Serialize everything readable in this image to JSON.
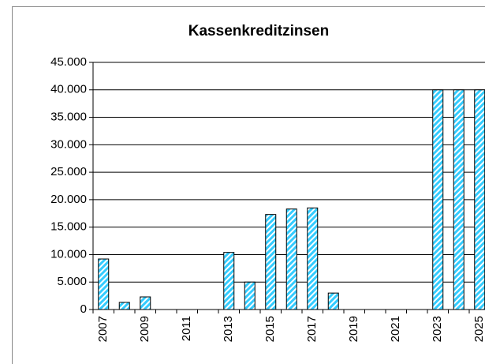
{
  "chart_data": {
    "type": "bar",
    "title": "Kassenkreditzinsen",
    "categories": [
      "2007",
      null,
      "2009",
      null,
      "2011",
      null,
      "2013",
      null,
      "2015",
      null,
      "2017",
      null,
      "2019",
      null,
      "2021",
      null,
      "2023",
      null,
      "2025"
    ],
    "values": [
      9200,
      1300,
      2300,
      0,
      0,
      0,
      10400,
      5000,
      17300,
      18300,
      18500,
      3000,
      0,
      0,
      0,
      0,
      40000,
      40000,
      40000
    ],
    "color": "#33ccff",
    "ylim": [
      0,
      45000
    ],
    "yticks": [
      0,
      {
        "value": 5000,
        "label": "5.000"
      },
      {
        "value": 10000,
        "label": "10.000"
      },
      {
        "value": 15000,
        "label": "15.000"
      },
      {
        "value": 20000,
        "label": "20.000"
      },
      {
        "value": 25000,
        "label": "25.000"
      },
      {
        "value": 30000,
        "label": "30.000"
      },
      {
        "value": 35000,
        "label": "35.000"
      },
      {
        "value": 40000,
        "label": "40.000"
      },
      {
        "value": 45000,
        "label": "45.000"
      }
    ],
    "grid": true
  }
}
